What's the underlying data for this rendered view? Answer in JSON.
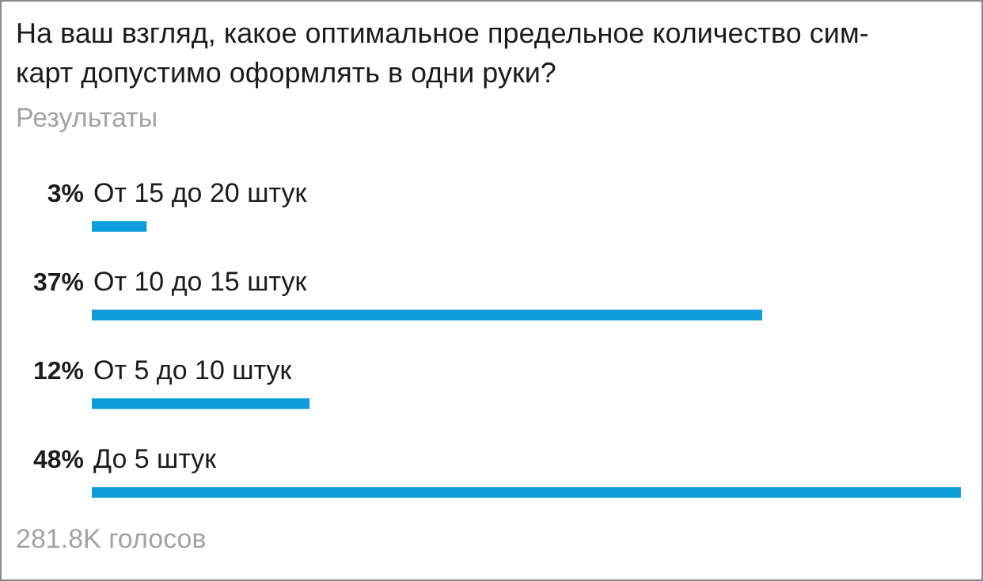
{
  "chart_data": {
    "type": "bar",
    "orientation": "horizontal",
    "title": "На ваш взгляд, какое оптимальное предельное количество сим-карт допустимо оформлять в одни руки?",
    "subtitle": "Результаты",
    "categories": [
      "От 15 до 20 штук",
      "От 10 до 15 штук",
      "От 5 до 10 штук",
      "До 5 штук"
    ],
    "values": [
      3,
      37,
      12,
      48
    ],
    "value_labels": [
      "3%",
      "37%",
      "12%",
      "48%"
    ],
    "color": "#0d9ddb",
    "annotations": [
      "281.8K голосов"
    ],
    "legend": false
  }
}
